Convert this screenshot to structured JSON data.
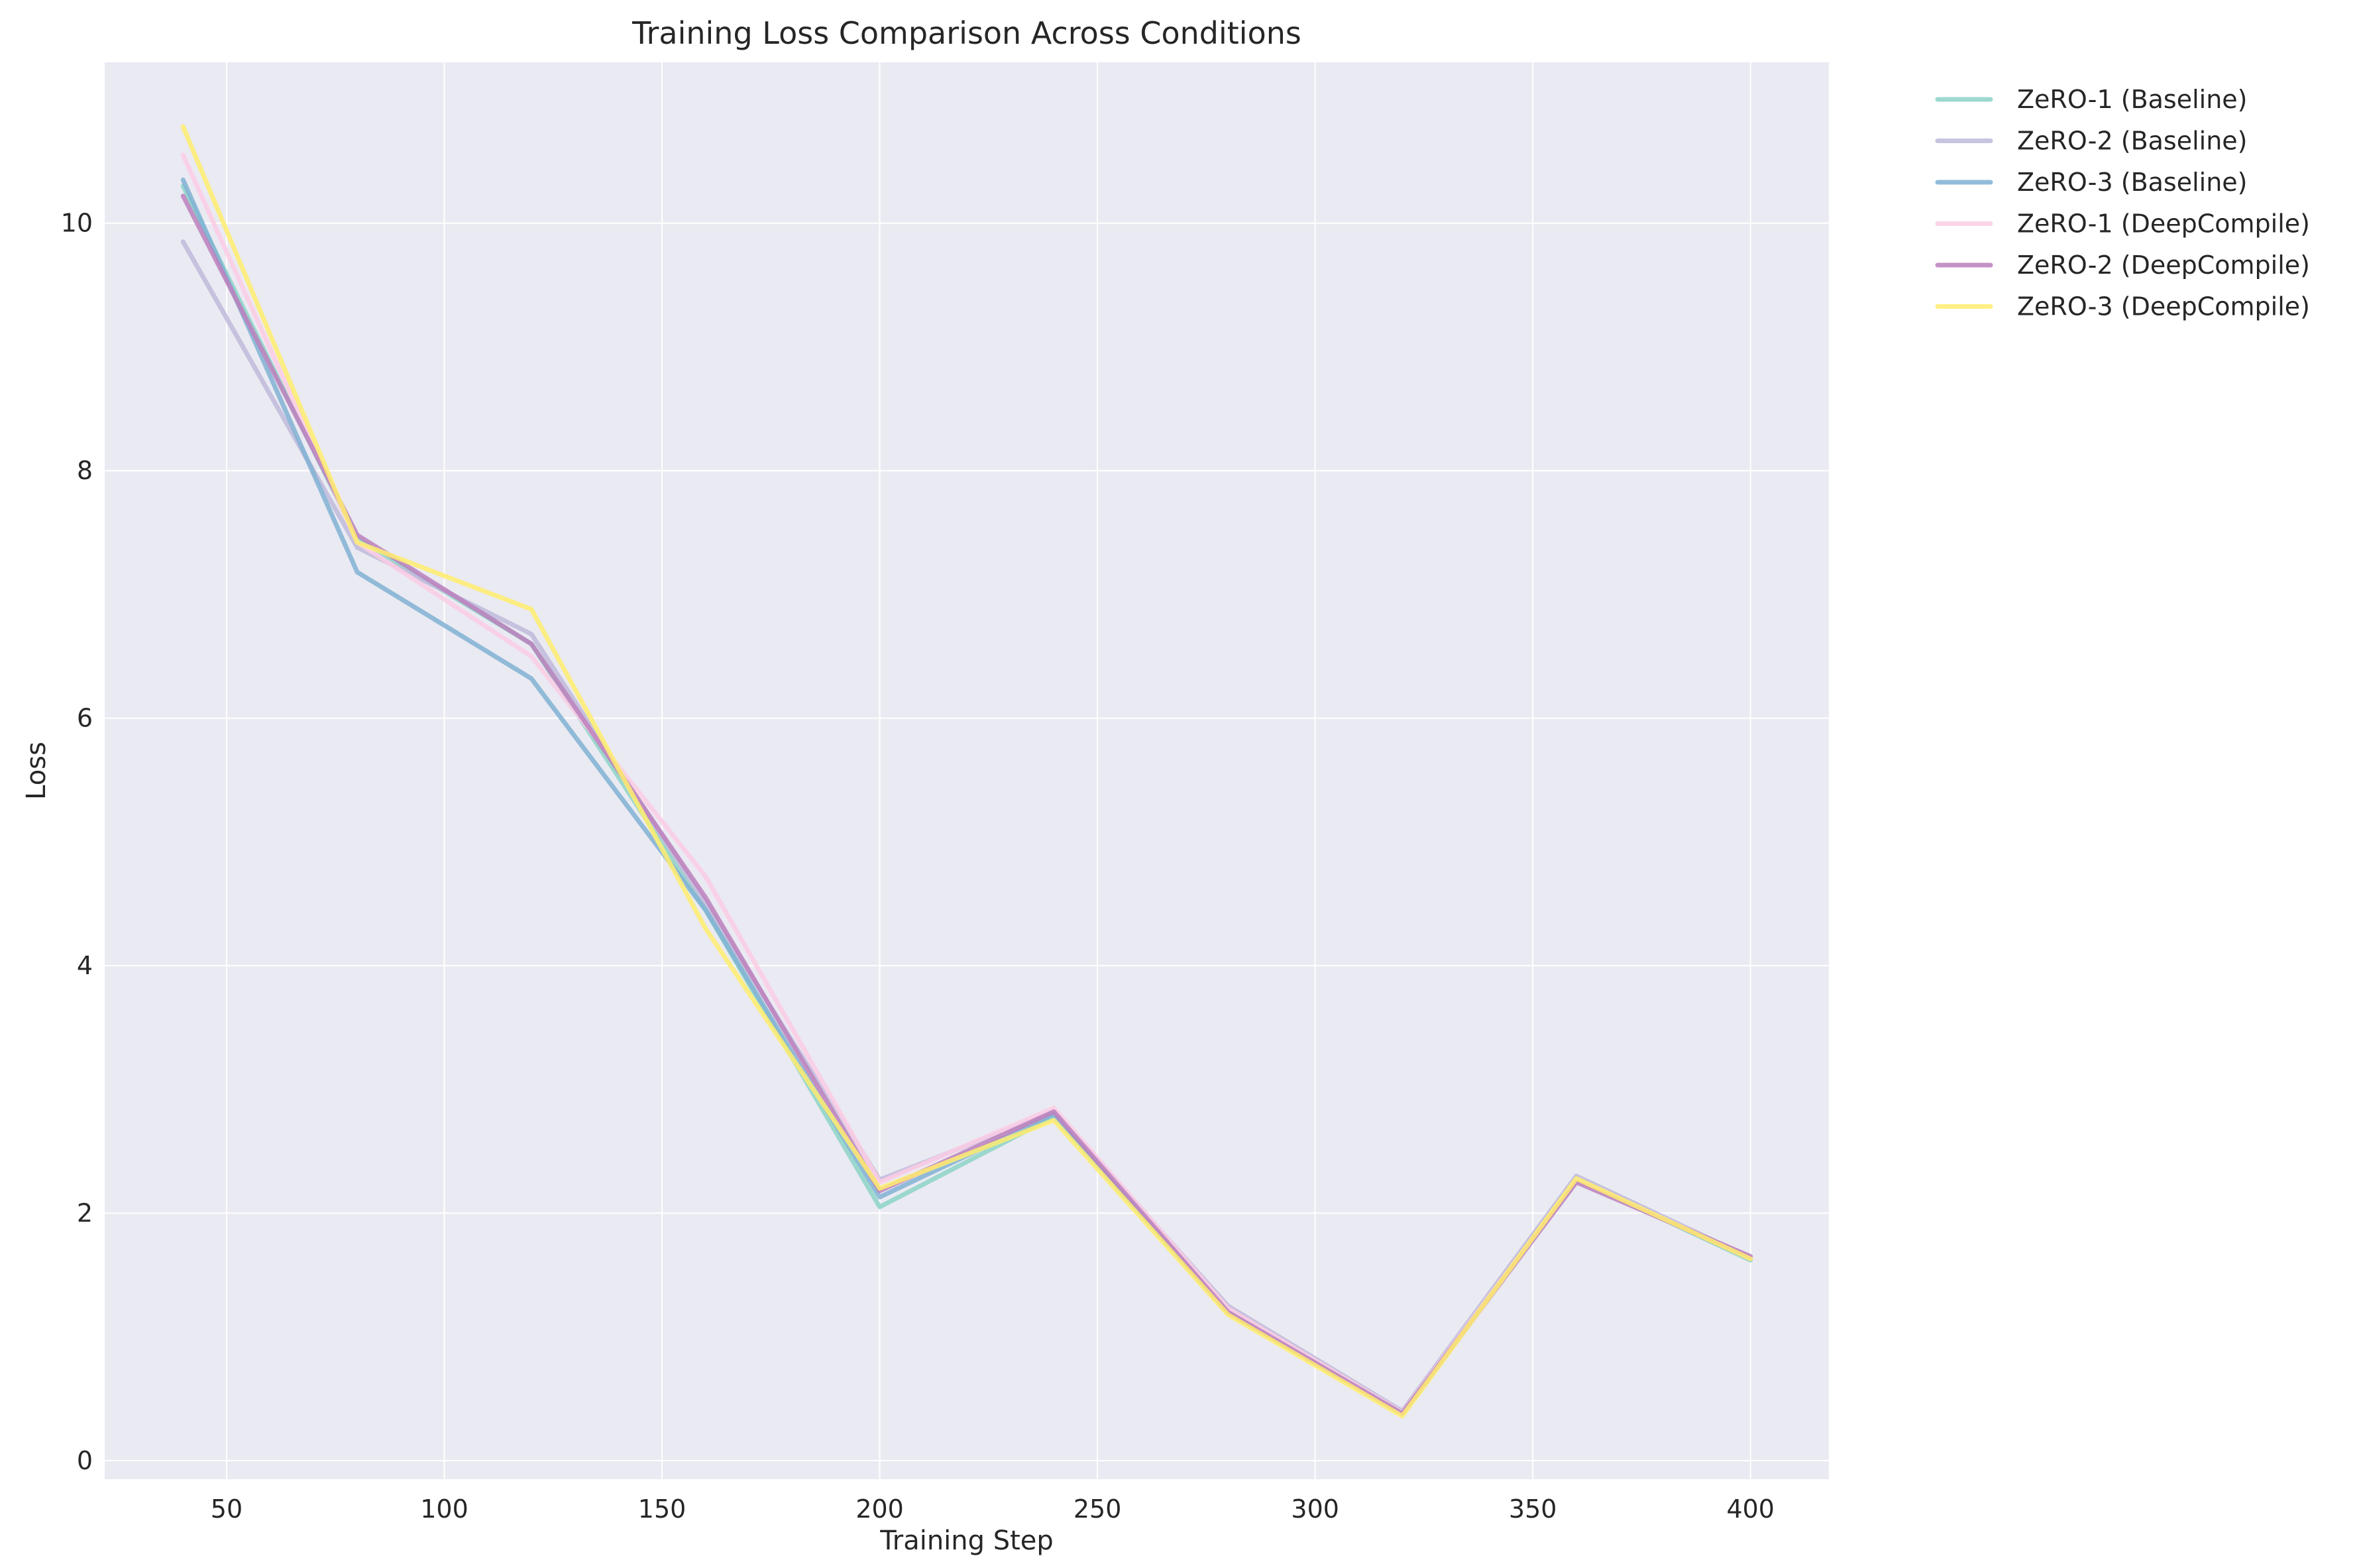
{
  "chart_data": {
    "type": "line",
    "title": "Training Loss Comparison Across Conditions",
    "xlabel": "Training Step",
    "ylabel": "Loss",
    "xlim": [
      22,
      418
    ],
    "ylim": [
      -0.15,
      11.3
    ],
    "xticks": [
      50,
      100,
      150,
      200,
      250,
      300,
      350,
      400
    ],
    "yticks": [
      0,
      2,
      4,
      6,
      8,
      10
    ],
    "grid": true,
    "legend_position": "outside-top-right",
    "x": [
      40,
      80,
      120,
      160,
      200,
      240,
      280,
      320,
      360,
      400
    ],
    "series": [
      {
        "name": "ZeRO-1 (Baseline)",
        "color": "#8dd3c7",
        "values": [
          10.3,
          7.45,
          6.6,
          4.45,
          2.05,
          2.78,
          1.2,
          0.38,
          2.28,
          1.62
        ]
      },
      {
        "name": "ZeRO-2 (Baseline)",
        "color": "#bebada",
        "values": [
          9.85,
          7.38,
          6.68,
          4.5,
          2.27,
          2.82,
          1.25,
          0.4,
          2.3,
          1.64
        ]
      },
      {
        "name": "ZeRO-3 (Baseline)",
        "color": "#80b1d3",
        "values": [
          10.35,
          7.18,
          6.32,
          4.45,
          2.13,
          2.8,
          1.2,
          0.39,
          2.27,
          1.63
        ]
      },
      {
        "name": "ZeRO-1 (DeepCompile)",
        "color": "#fccde5",
        "values": [
          10.55,
          7.42,
          6.5,
          4.72,
          2.25,
          2.85,
          1.23,
          0.39,
          2.27,
          1.64
        ]
      },
      {
        "name": "ZeRO-2 (DeepCompile)",
        "color": "#bc80bd",
        "values": [
          10.22,
          7.48,
          6.6,
          4.55,
          2.18,
          2.82,
          1.2,
          0.38,
          2.25,
          1.65
        ]
      },
      {
        "name": "ZeRO-3 (DeepCompile)",
        "color": "#ffed6f",
        "values": [
          10.78,
          7.42,
          6.88,
          4.3,
          2.2,
          2.75,
          1.18,
          0.36,
          2.28,
          1.63
        ]
      }
    ]
  },
  "colors": {
    "plot_background": "#eaeaf2",
    "grid": "#ffffff",
    "text": "#262626"
  }
}
